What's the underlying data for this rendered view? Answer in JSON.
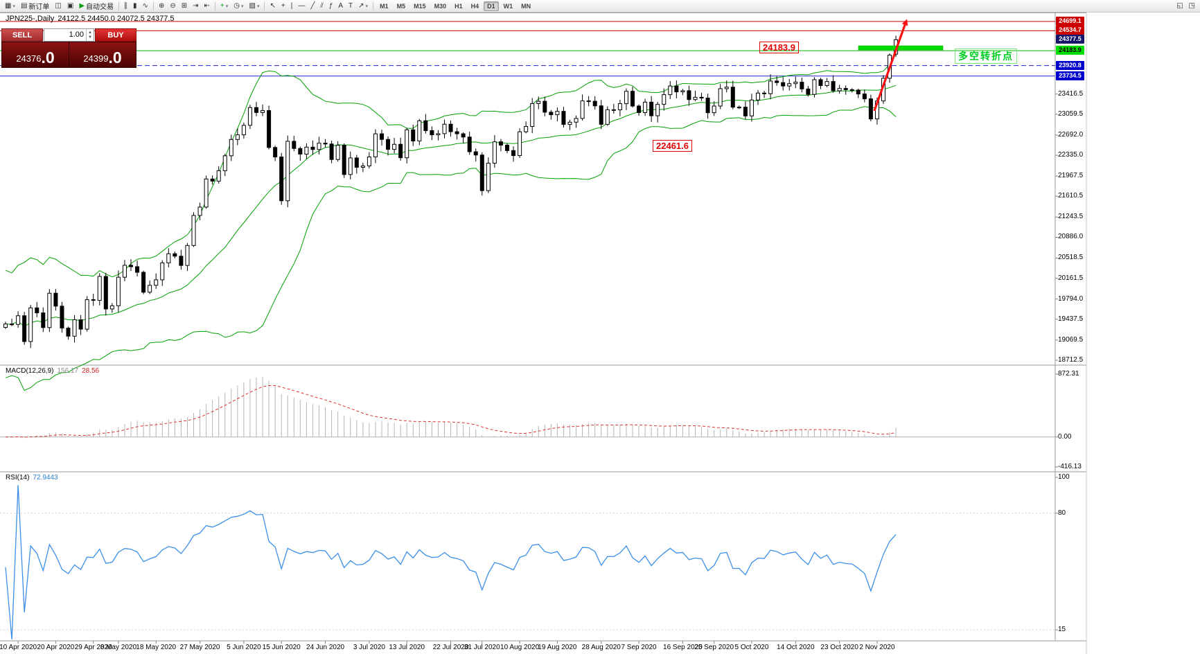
{
  "toolbar": {
    "items": [
      {
        "type": "btn",
        "name": "new-chart-button",
        "glyph": "▦",
        "caret": true
      },
      {
        "type": "btn",
        "name": "new-order-button",
        "glyph": "▤",
        "label": "新订单"
      },
      {
        "type": "btn",
        "name": "navigator-button",
        "glyph": "◫"
      },
      {
        "type": "btn",
        "name": "terminal-button",
        "glyph": "▣"
      },
      {
        "type": "btn",
        "name": "autotrading-button",
        "glyph": "▶",
        "label": "自动交易",
        "color": "#169c16"
      },
      {
        "type": "sep"
      },
      {
        "type": "btn",
        "name": "bar-chart-button",
        "glyph": "∥"
      },
      {
        "type": "btn",
        "name": "candlestick-chart-button",
        "glyph": "▮"
      },
      {
        "type": "btn",
        "name": "line-chart-button",
        "glyph": "∿"
      },
      {
        "type": "sep"
      },
      {
        "type": "btn",
        "name": "zoom-in-button",
        "glyph": "⊕"
      },
      {
        "type": "btn",
        "name": "zoom-out-button",
        "glyph": "⊖"
      },
      {
        "type": "btn",
        "name": "tile-windows-button",
        "glyph": "⊞"
      },
      {
        "type": "btn",
        "name": "auto-scroll-button",
        "glyph": "⇥"
      },
      {
        "type": "btn",
        "name": "chart-shift-button",
        "glyph": "⇤"
      },
      {
        "type": "sep"
      },
      {
        "type": "btn",
        "name": "indicators-button",
        "glyph": "+",
        "color": "#169c16",
        "caret": true
      },
      {
        "type": "btn",
        "name": "periods-button",
        "glyph": "◷",
        "caret": true
      },
      {
        "type": "btn",
        "name": "templates-button",
        "glyph": "▨",
        "caret": true
      },
      {
        "type": "sep"
      },
      {
        "type": "btn",
        "name": "cursor-button",
        "glyph": "↖"
      },
      {
        "type": "btn",
        "name": "crosshair-button",
        "glyph": "+"
      },
      {
        "type": "btn",
        "name": "vertical-line-button",
        "glyph": "|"
      },
      {
        "type": "btn",
        "name": "horizontal-line-button",
        "glyph": "―"
      },
      {
        "type": "btn",
        "name": "trendline-button",
        "glyph": "╱"
      },
      {
        "type": "btn",
        "name": "channel-button",
        "glyph": "⫽"
      },
      {
        "type": "btn",
        "name": "fibonacci-button",
        "glyph": "ƒ"
      },
      {
        "type": "btn",
        "name": "text-button",
        "glyph": "A"
      },
      {
        "type": "btn",
        "name": "label-button",
        "glyph": "T"
      },
      {
        "type": "btn",
        "name": "arrows-button",
        "glyph": "↗",
        "caret": true
      },
      {
        "type": "sep"
      },
      {
        "type": "tf",
        "label": "M1"
      },
      {
        "type": "tf",
        "label": "M5"
      },
      {
        "type": "tf",
        "label": "M15"
      },
      {
        "type": "tf",
        "label": "M30"
      },
      {
        "type": "tf",
        "label": "H1"
      },
      {
        "type": "tf",
        "label": "H4"
      },
      {
        "type": "tf",
        "label": "D1",
        "active": true
      },
      {
        "type": "tf",
        "label": "W1"
      },
      {
        "type": "tf",
        "label": "MN"
      },
      {
        "type": "spacer"
      },
      {
        "type": "btn",
        "name": "window-restore-button",
        "glyph": "◱"
      },
      {
        "type": "btn",
        "name": "window-menu-button",
        "glyph": "◳"
      }
    ]
  },
  "chart": {
    "title_symbol": "JPN225-,Daily",
    "title_ohlc": "24122.5 24450.0 24072.5 24377.5",
    "trade_panel": {
      "sell_label": "SELL",
      "buy_label": "BUY",
      "volume": "1.00",
      "sell_price": "24376",
      "sell_price_frac": ".0",
      "buy_price": "24399",
      "buy_price_frac": ".0"
    },
    "annotations": {
      "level_high": "24183.9",
      "level_low": "22461.6",
      "turning_point": "多空转折点"
    },
    "price_axis": {
      "scale": [
        "23416.5",
        "23059.5",
        "22692.0",
        "22335.0",
        "21967.5",
        "21610.5",
        "21243.5",
        "20886.0",
        "20518.5",
        "20161.5",
        "19794.0",
        "19437.5",
        "19069.5",
        "18712.5"
      ],
      "highlights": [
        {
          "text": "24699.1",
          "price": 24699.1,
          "bg": "#cc0000",
          "fg": "#ffffff"
        },
        {
          "text": "24534.7",
          "price": 24534.7,
          "bg": "#cc0000",
          "fg": "#ffffff"
        },
        {
          "text": "24377.5",
          "price": 24377.5,
          "bg": "#15156a",
          "fg": "#ffffff"
        },
        {
          "text": "24183.9",
          "price": 24183.9,
          "bg": "#00dd00",
          "fg": "#000000"
        },
        {
          "text": "23920.8",
          "price": 23920.8,
          "bg": "#0000cc",
          "fg": "#ffffff"
        },
        {
          "text": "23734.5",
          "price": 23734.5,
          "bg": "#0000cc",
          "fg": "#ffffff"
        }
      ]
    }
  },
  "macd": {
    "label": "MACD(12,26,9)",
    "value_main": "156.17",
    "value_signal": "28.56",
    "axis": [
      {
        "text": "872.31",
        "value": 872.31
      },
      {
        "text": "0.00",
        "value": 0
      },
      {
        "text": "-416.13",
        "value": -416.13
      }
    ]
  },
  "rsi": {
    "label": "RSI(14)",
    "value": "72.9443",
    "axis": [
      {
        "text": "100",
        "value": 100
      },
      {
        "text": "80",
        "value": 80
      },
      {
        "text": "15",
        "value": 15
      }
    ],
    "levels": [
      80,
      15
    ]
  },
  "dates": [
    {
      "label": "10 Apr 2020",
      "i": 2
    },
    {
      "label": "20 Apr 2020",
      "i": 8
    },
    {
      "label": "29 Apr 2020",
      "i": 14
    },
    {
      "label": "8 May 2020",
      "i": 18
    },
    {
      "label": "18 May 2020",
      "i": 24
    },
    {
      "label": "27 May 2020",
      "i": 31
    },
    {
      "label": "5 Jun 2020",
      "i": 38
    },
    {
      "label": "15 Jun 2020",
      "i": 44
    },
    {
      "label": "24 Jun 2020",
      "i": 51
    },
    {
      "label": "3 Jul 2020",
      "i": 58
    },
    {
      "label": "13 Jul 2020",
      "i": 64
    },
    {
      "label": "22 Jul 2020",
      "i": 71
    },
    {
      "label": "31 Jul 2020",
      "i": 76
    },
    {
      "label": "10 Aug 2020",
      "i": 82
    },
    {
      "label": "19 Aug 2020",
      "i": 88
    },
    {
      "label": "28 Aug 2020",
      "i": 95
    },
    {
      "label": "7 Sep 2020",
      "i": 101
    },
    {
      "label": "16 Sep 2020",
      "i": 108
    },
    {
      "label": "25 Sep 2020",
      "i": 113
    },
    {
      "label": "5 Oct 2020",
      "i": 119
    },
    {
      "label": "14 Oct 2020",
      "i": 126
    },
    {
      "label": "23 Oct 2020",
      "i": 133
    },
    {
      "label": "2 Nov 2020",
      "i": 139
    }
  ],
  "chart_data": {
    "type": "candlestick",
    "symbol": "JPN225-",
    "timeframe": "Daily",
    "last_candle": {
      "open": 24122.5,
      "high": 24450.0,
      "low": 24072.5,
      "close": 24377.5
    },
    "bid": "24376.0",
    "ask": "24399.0",
    "closes": [
      19353,
      19346,
      19499,
      19043,
      19639,
      19550,
      19290,
      19897,
      19669,
      19281,
      19138,
      19429,
      19262,
      19783,
      19771,
      20194,
      19619,
      19675,
      20180,
      20391,
      20366,
      20267,
      19915,
      20037,
      20134,
      20433,
      20595,
      20552,
      20388,
      20741,
      21271,
      21419,
      21916,
      21878,
      22062,
      22326,
      22614,
      22696,
      22864,
      23178,
      23091,
      23125,
      22473,
      22305,
      21531,
      22582,
      22455,
      22355,
      22479,
      22437,
      22549,
      22534,
      22260,
      22512,
      21995,
      22288,
      22122,
      22146,
      22306,
      22714,
      22615,
      22439,
      22529,
      22291,
      22785,
      22587,
      22945,
      22770,
      22696,
      22717,
      22884,
      22751,
      22715,
      22657,
      22397,
      22339,
      21710,
      22195,
      22573,
      22514,
      22418,
      22330,
      22750,
      22844,
      23249,
      23289,
      23096,
      23051,
      23111,
      22880,
      22920,
      22986,
      23296,
      23290,
      23208,
      22882,
      23140,
      23138,
      23247,
      23466,
      23205,
      23089,
      23274,
      23033,
      23235,
      23406,
      23559,
      23455,
      23476,
      23319,
      23360,
      23346,
      23087,
      23205,
      23512,
      23539,
      23185,
      23185,
      23030,
      23312,
      23434,
      23423,
      23647,
      23620,
      23559,
      23601,
      23627,
      23507,
      23411,
      23671,
      23567,
      23639,
      23474,
      23516,
      23494,
      23486,
      23418,
      23332,
      22977,
      23295,
      23695,
      24105,
      24377.5
    ],
    "indicators": {
      "bollinger": {
        "period": 20,
        "deviation": 2
      },
      "macd": {
        "fast": 12,
        "slow": 26,
        "signal": 9,
        "main_value": 156.17,
        "signal_value": 28.56
      },
      "rsi": {
        "period": 14,
        "value": 72.9443
      }
    },
    "hlines": [
      {
        "price": 24699.1,
        "color": "#cc0000",
        "style": "solid"
      },
      {
        "price": 24534.7,
        "color": "#cc0000",
        "style": "solid"
      },
      {
        "price": 24183.9,
        "color": "#00bb00",
        "style": "solid"
      },
      {
        "price": 23920.8,
        "color": "#2222cc",
        "style": "dash"
      },
      {
        "price": 23734.5,
        "color": "#2222cc",
        "style": "solid"
      }
    ],
    "annotation_levels": [
      24183.9,
      22461.6
    ],
    "price_range_visible": [
      18712.5,
      24699.1
    ]
  }
}
